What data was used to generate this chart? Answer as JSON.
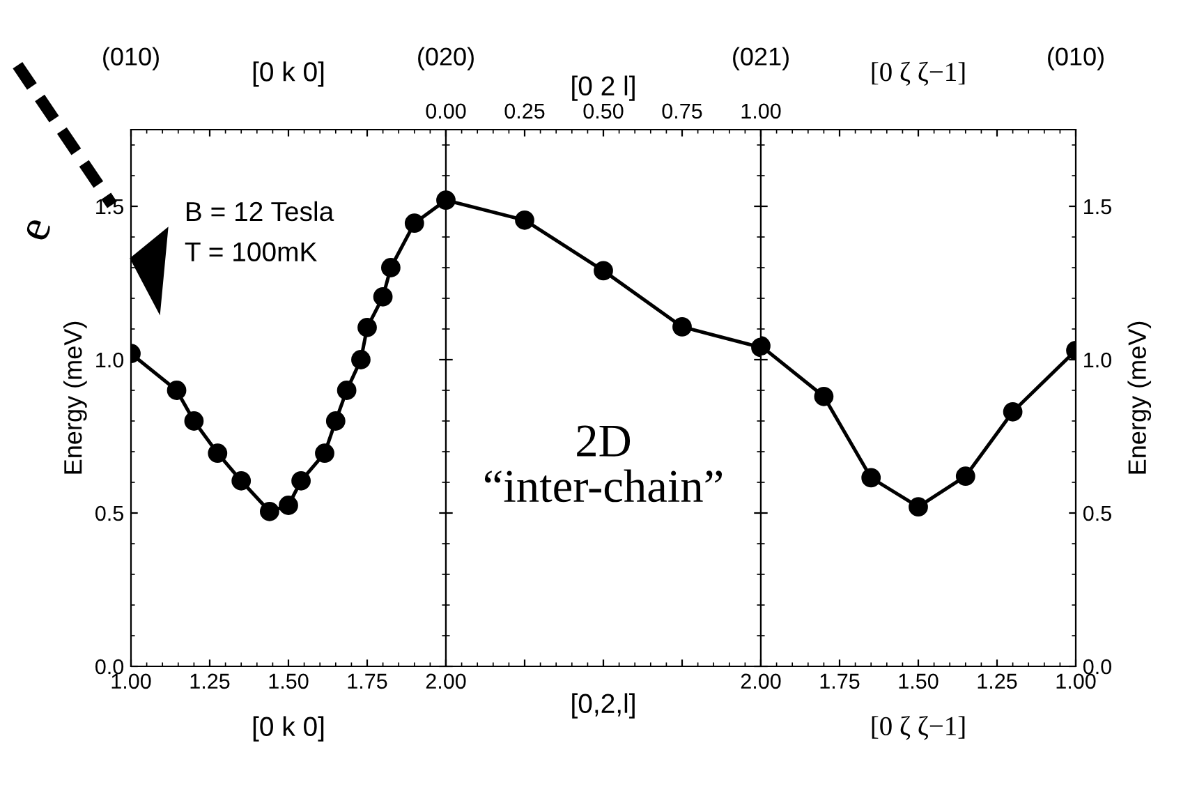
{
  "chart_data": [
    {
      "type": "line",
      "xlabel": "[0 k 0]",
      "x2label": "[0 k 0]",
      "ylabel": "Energy (meV)",
      "xlim": [
        1.0,
        2.0
      ],
      "xticks": [
        {
          "value": 1.0,
          "label": "1.00"
        },
        {
          "value": 1.25,
          "label": "1.25"
        },
        {
          "value": 1.5,
          "label": "1.50"
        },
        {
          "value": 1.75,
          "label": "1.75"
        },
        {
          "value": 2.0,
          "label": "2.00"
        }
      ],
      "ylim": [
        0,
        1.75
      ],
      "yticks": [
        {
          "value": 0,
          "label": "0.0"
        },
        {
          "value": 0.5,
          "label": "0.5"
        },
        {
          "value": 1.0,
          "label": "1.0"
        },
        {
          "value": 1.5,
          "label": "1.5"
        }
      ],
      "marker": "circle",
      "grid": false,
      "legend": false,
      "annotations": [
        "(010)",
        "(020)",
        "B = 12 Tesla",
        "T = 100mK",
        "e"
      ],
      "series": [
        {
          "color": "#000000",
          "x": [
            1.0,
            1.145,
            1.2,
            1.275,
            1.35,
            1.44,
            1.5,
            1.54,
            1.615,
            1.65,
            1.685,
            1.73,
            1.75,
            1.8,
            1.825,
            1.9,
            2.0
          ],
          "values": [
            1.02,
            0.9,
            0.8,
            0.695,
            0.605,
            0.505,
            0.525,
            0.605,
            0.695,
            0.8,
            0.9,
            1.0,
            1.105,
            1.205,
            1.3,
            1.445,
            1.52
          ]
        }
      ]
    },
    {
      "type": "line",
      "xlabel": "[0,2,l]",
      "x2label": "[0 2 l]",
      "xlim": [
        0,
        1
      ],
      "xticks": [
        {
          "value": 0,
          "label": "0.00"
        },
        {
          "value": 0.25,
          "label": "0.25"
        },
        {
          "value": 0.5,
          "label": "0.50"
        },
        {
          "value": 0.75,
          "label": "0.75"
        },
        {
          "value": 1.0,
          "label": "1.00"
        }
      ],
      "ylim": [
        0,
        1.75
      ],
      "tick_labels": "x",
      "marker": "circle",
      "grid": false,
      "legend": false,
      "annotations": [
        "2D “inter-chain”"
      ],
      "series": [
        {
          "color": "#000000",
          "x": [
            0,
            0.25,
            0.5,
            0.75,
            1.0
          ],
          "values": [
            1.52,
            1.455,
            1.29,
            1.107,
            1.04
          ]
        }
      ]
    },
    {
      "type": "line",
      "xlabel": "[0 ζ ζ−1]",
      "x2label": "[0 ζ ζ−1]",
      "ylabel": "Energy (meV)",
      "xlim": [
        2.0,
        1.0
      ],
      "xticks": [
        {
          "value": 2.0,
          "label": "2.00"
        },
        {
          "value": 1.75,
          "label": "1.75"
        },
        {
          "value": 1.5,
          "label": "1.50"
        },
        {
          "value": 1.25,
          "label": "1.25"
        },
        {
          "value": 1.0,
          "label": "1.00"
        }
      ],
      "ylim": [
        0,
        1.75
      ],
      "yticks": [
        {
          "value": 0,
          "label": "0.0"
        },
        {
          "value": 0.5,
          "label": "0.5"
        },
        {
          "value": 1.0,
          "label": "1.0"
        },
        {
          "value": 1.5,
          "label": "1.5"
        }
      ],
      "marker": "circle",
      "grid": false,
      "legend": false,
      "annotations": [
        "(021)",
        "(010)"
      ],
      "series": [
        {
          "color": "#000000",
          "x": [
            2.0,
            1.8,
            1.65,
            1.5,
            1.35,
            1.2,
            1.0
          ],
          "values": [
            1.045,
            0.88,
            0.615,
            0.52,
            0.62,
            0.83,
            1.03
          ]
        }
      ]
    }
  ]
}
